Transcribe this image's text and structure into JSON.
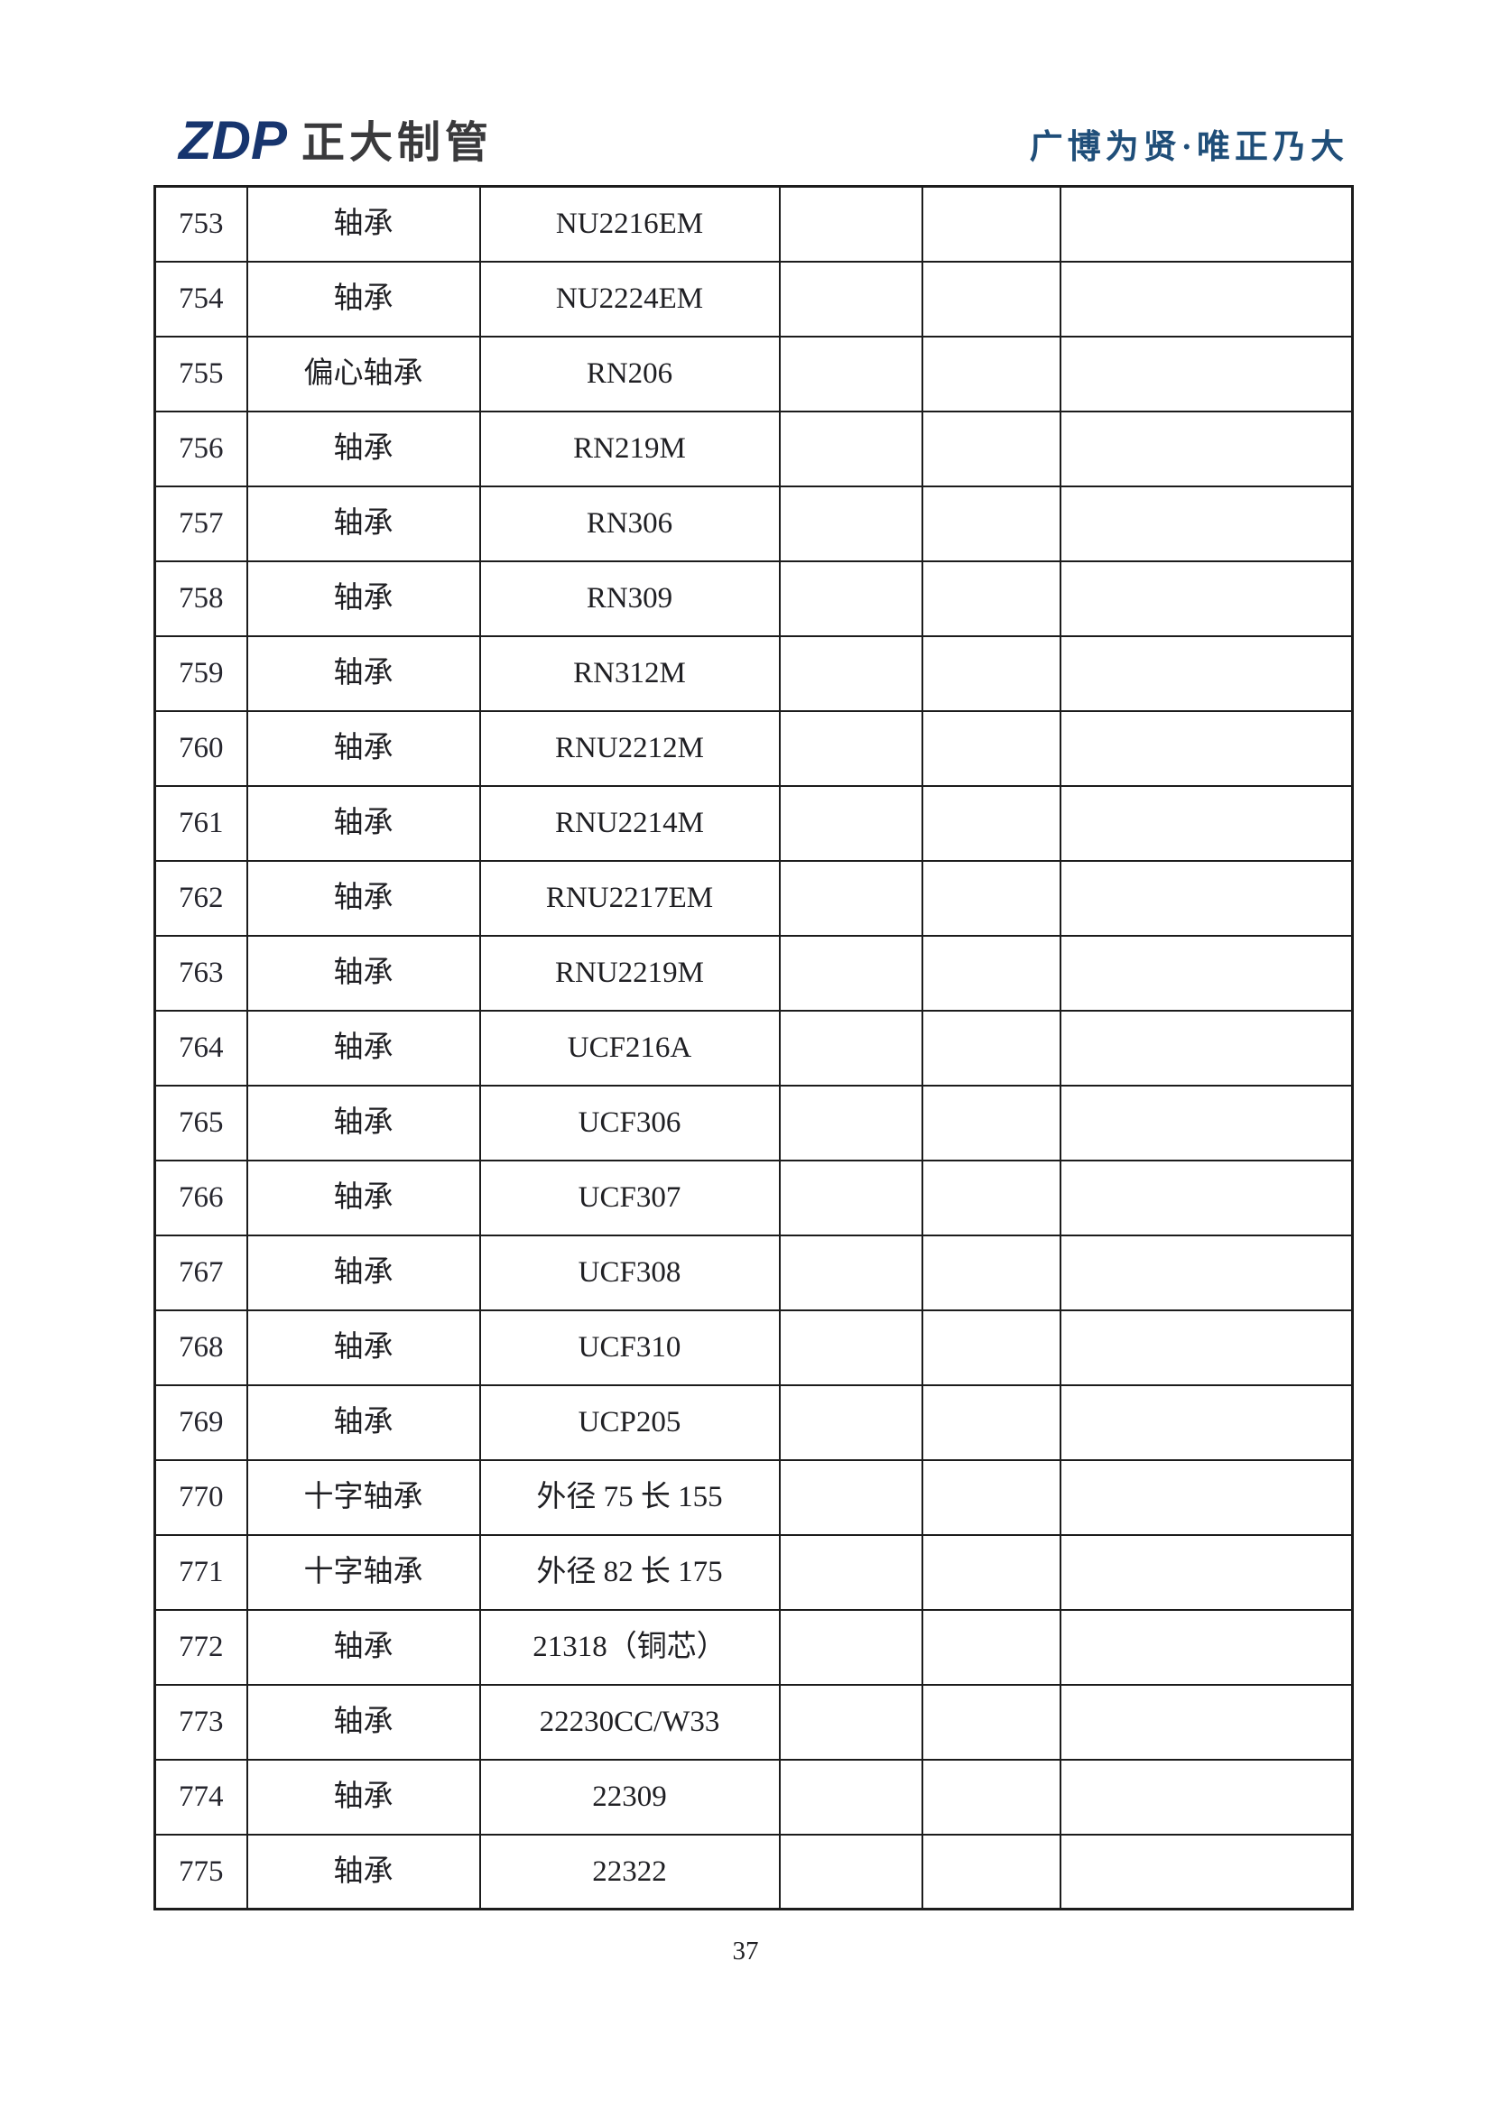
{
  "colors": {
    "logo-navy": "#17356e",
    "logo-gray": "#3a3a3c",
    "slogan-blue": "#1f4e79",
    "text": "#1f1f23",
    "border": "#1c1c1c"
  },
  "header": {
    "logo_zdp": "ZDP",
    "logo_company": "正大制管",
    "slogan": "广博为贤·唯正乃大"
  },
  "table": {
    "rows": [
      [
        "753",
        "轴承",
        "NU2216EM",
        "",
        "",
        ""
      ],
      [
        "754",
        "轴承",
        "NU2224EM",
        "",
        "",
        ""
      ],
      [
        "755",
        "偏心轴承",
        "RN206",
        "",
        "",
        ""
      ],
      [
        "756",
        "轴承",
        "RN219M",
        "",
        "",
        ""
      ],
      [
        "757",
        "轴承",
        "RN306",
        "",
        "",
        ""
      ],
      [
        "758",
        "轴承",
        "RN309",
        "",
        "",
        ""
      ],
      [
        "759",
        "轴承",
        "RN312M",
        "",
        "",
        ""
      ],
      [
        "760",
        "轴承",
        "RNU2212M",
        "",
        "",
        ""
      ],
      [
        "761",
        "轴承",
        "RNU2214M",
        "",
        "",
        ""
      ],
      [
        "762",
        "轴承",
        "RNU2217EM",
        "",
        "",
        ""
      ],
      [
        "763",
        "轴承",
        "RNU2219M",
        "",
        "",
        ""
      ],
      [
        "764",
        "轴承",
        "UCF216A",
        "",
        "",
        ""
      ],
      [
        "765",
        "轴承",
        "UCF306",
        "",
        "",
        ""
      ],
      [
        "766",
        "轴承",
        "UCF307",
        "",
        "",
        ""
      ],
      [
        "767",
        "轴承",
        "UCF308",
        "",
        "",
        ""
      ],
      [
        "768",
        "轴承",
        "UCF310",
        "",
        "",
        ""
      ],
      [
        "769",
        "轴承",
        "UCP205",
        "",
        "",
        ""
      ],
      [
        "770",
        "十字轴承",
        "外径 75 长 155",
        "",
        "",
        ""
      ],
      [
        "771",
        "十字轴承",
        "外径 82 长 175",
        "",
        "",
        ""
      ],
      [
        "772",
        "轴承",
        "21318（铜芯）",
        "",
        "",
        ""
      ],
      [
        "773",
        "轴承",
        "22230CC/W33",
        "",
        "",
        ""
      ],
      [
        "774",
        "轴承",
        "22309",
        "",
        "",
        ""
      ],
      [
        "775",
        "轴承",
        "22322",
        "",
        "",
        ""
      ]
    ]
  },
  "footer": {
    "page_number": "37"
  }
}
